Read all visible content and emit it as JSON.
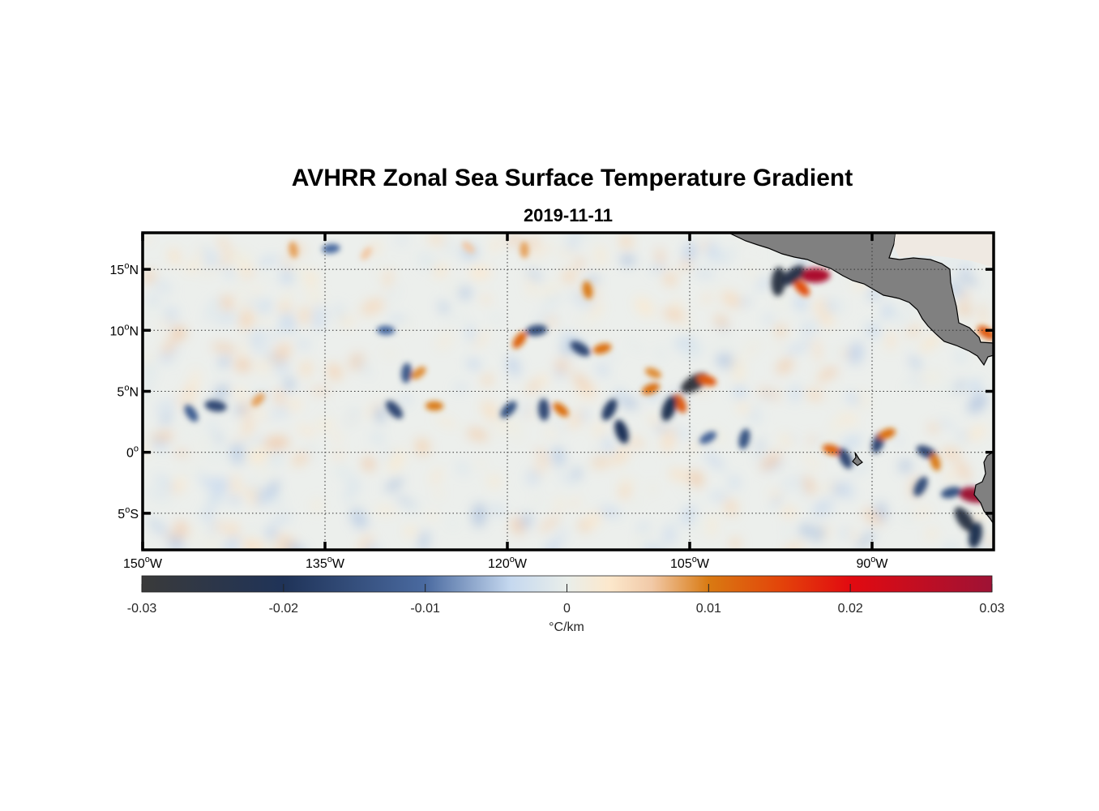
{
  "title": "AVHRR Zonal Sea Surface Temperature Gradient",
  "subtitle": "2019-11-11",
  "map": {
    "lon_range": [
      -150,
      -80
    ],
    "lat_range": [
      -8,
      18
    ],
    "grid": true,
    "land_color": "#808080",
    "lat_ticks": [
      {
        "value": 15,
        "num": "15",
        "hemi": "N"
      },
      {
        "value": 10,
        "num": "10",
        "hemi": "N"
      },
      {
        "value": 5,
        "num": "5",
        "hemi": "N"
      },
      {
        "value": 0,
        "num": "0",
        "hemi": ""
      },
      {
        "value": -5,
        "num": "5",
        "hemi": "S"
      }
    ],
    "lon_ticks": [
      {
        "value": -150,
        "num": "150",
        "hemi": "W"
      },
      {
        "value": -135,
        "num": "135",
        "hemi": "W"
      },
      {
        "value": -120,
        "num": "120",
        "hemi": "W"
      },
      {
        "value": -105,
        "num": "105",
        "hemi": "W"
      },
      {
        "value": -90,
        "num": "90",
        "hemi": "W"
      }
    ],
    "degree_symbol": "o"
  },
  "colorbar": {
    "range": [
      -0.03,
      0.03
    ],
    "label": "°C/km",
    "tick_labels": [
      "-0.03",
      "-0.02",
      "-0.01",
      "0",
      "0.01",
      "0.02",
      "0.03"
    ],
    "tick_values": [
      -0.03,
      -0.02,
      -0.01,
      0,
      0.01,
      0.02,
      0.03
    ],
    "stops": [
      {
        "v": -0.03,
        "color": "#3a3a3a"
      },
      {
        "v": -0.02,
        "color": "#1f3358"
      },
      {
        "v": -0.01,
        "color": "#4a6aa0"
      },
      {
        "v": -0.004,
        "color": "#c5d8ef"
      },
      {
        "v": 0.0,
        "color": "#e9eeea"
      },
      {
        "v": 0.003,
        "color": "#fce8cc"
      },
      {
        "v": 0.006,
        "color": "#f1c9a7"
      },
      {
        "v": 0.01,
        "color": "#d97a12"
      },
      {
        "v": 0.015,
        "color": "#e3450a"
      },
      {
        "v": 0.02,
        "color": "#e20a10"
      },
      {
        "v": 0.03,
        "color": "#9e1235"
      }
    ]
  },
  "chart_data": {
    "type": "heatmap",
    "title": "AVHRR Zonal Sea Surface Temperature Gradient",
    "subtitle": "2019-11-11",
    "x_range": [
      -150,
      -80
    ],
    "y_range": [
      -8,
      18
    ],
    "value_range": [
      -0.03,
      0.03
    ],
    "units": "°C/km",
    "features": [
      {
        "lon": -94.7,
        "lat": 14.5,
        "value": 0.028
      },
      {
        "lon": -95.8,
        "lat": 13.5,
        "value": 0.014
      },
      {
        "lon": -97.7,
        "lat": 14.0,
        "value": -0.026
      },
      {
        "lon": -96.5,
        "lat": 14.5,
        "value": -0.024
      },
      {
        "lon": -81.6,
        "lat": -3.5,
        "value": 0.03
      },
      {
        "lon": -82.4,
        "lat": -5.5,
        "value": -0.025
      },
      {
        "lon": -81.5,
        "lat": -6.8,
        "value": -0.022
      },
      {
        "lon": -104.6,
        "lat": 5.7,
        "value": -0.028
      },
      {
        "lon": -103.6,
        "lat": 5.9,
        "value": 0.013
      },
      {
        "lon": -105.8,
        "lat": 4.0,
        "value": 0.013
      },
      {
        "lon": -106.7,
        "lat": 3.6,
        "value": -0.022
      },
      {
        "lon": -108.2,
        "lat": 5.2,
        "value": 0.011
      },
      {
        "lon": -108.0,
        "lat": 6.5,
        "value": 0.009
      },
      {
        "lon": -110.6,
        "lat": 1.7,
        "value": -0.02
      },
      {
        "lon": -111.6,
        "lat": 3.5,
        "value": -0.018
      },
      {
        "lon": -112.2,
        "lat": 8.5,
        "value": 0.011
      },
      {
        "lon": -114.0,
        "lat": 8.5,
        "value": -0.016
      },
      {
        "lon": -113.4,
        "lat": 13.3,
        "value": 0.01
      },
      {
        "lon": -119.0,
        "lat": 9.2,
        "value": 0.012
      },
      {
        "lon": -117.6,
        "lat": 10.0,
        "value": -0.015
      },
      {
        "lon": -115.6,
        "lat": 3.5,
        "value": 0.011
      },
      {
        "lon": -117.0,
        "lat": 3.5,
        "value": -0.016
      },
      {
        "lon": -119.9,
        "lat": 3.5,
        "value": -0.014
      },
      {
        "lon": -126.0,
        "lat": 3.8,
        "value": 0.01
      },
      {
        "lon": -129.3,
        "lat": 3.5,
        "value": -0.016
      },
      {
        "lon": -128.3,
        "lat": 6.5,
        "value": -0.013
      },
      {
        "lon": -127.3,
        "lat": 6.5,
        "value": 0.009
      },
      {
        "lon": -144.0,
        "lat": 3.8,
        "value": -0.016
      },
      {
        "lon": -146.0,
        "lat": 3.2,
        "value": -0.012
      },
      {
        "lon": -100.5,
        "lat": 1.1,
        "value": -0.014
      },
      {
        "lon": -103.5,
        "lat": 1.2,
        "value": -0.011
      },
      {
        "lon": -93.3,
        "lat": 0.2,
        "value": 0.012
      },
      {
        "lon": -92.2,
        "lat": -0.5,
        "value": -0.016
      },
      {
        "lon": -89.5,
        "lat": 0.8,
        "value": -0.016
      },
      {
        "lon": -88.8,
        "lat": 1.5,
        "value": 0.011
      },
      {
        "lon": -85.5,
        "lat": 0.0,
        "value": -0.016
      },
      {
        "lon": -84.8,
        "lat": -0.8,
        "value": 0.01
      },
      {
        "lon": -86.0,
        "lat": -2.8,
        "value": -0.015
      },
      {
        "lon": -83.5,
        "lat": -3.3,
        "value": -0.014
      },
      {
        "lon": -80.6,
        "lat": 9.8,
        "value": 0.013
      },
      {
        "lon": -137.6,
        "lat": 16.6,
        "value": 0.008
      },
      {
        "lon": -131.6,
        "lat": 16.3,
        "value": 0.006
      },
      {
        "lon": -134.5,
        "lat": 16.7,
        "value": -0.01
      },
      {
        "lon": -123.2,
        "lat": 16.8,
        "value": 0.006
      },
      {
        "lon": -118.6,
        "lat": 16.6,
        "value": 0.008
      },
      {
        "lon": -140.5,
        "lat": 4.3,
        "value": 0.008
      },
      {
        "lon": -130.0,
        "lat": 10.0,
        "value": -0.01
      }
    ]
  }
}
